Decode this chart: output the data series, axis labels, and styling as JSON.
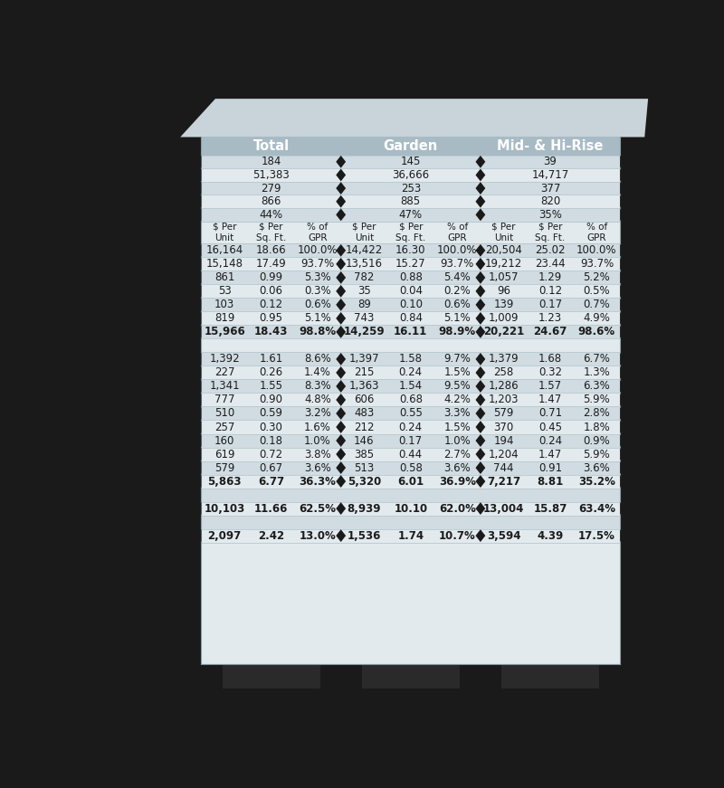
{
  "title_sections": [
    "Total",
    "Garden",
    "Mid- & Hi-Rise"
  ],
  "summary_data": {
    "total": [
      "184",
      "51,383",
      "279",
      "866",
      "44%"
    ],
    "garden": [
      "145",
      "36,666",
      "253",
      "885",
      "47%"
    ],
    "mid": [
      "39",
      "14,717",
      "377",
      "820",
      "35%"
    ]
  },
  "col_headers": [
    "$ Per\nUnit",
    "$ Per\nSq. Ft.",
    "% of\nGPR"
  ],
  "data_rows": [
    [
      "16,164",
      "18.66",
      "100.0%",
      "14,422",
      "16.30",
      "100.0%",
      "20,504",
      "25.02",
      "100.0%"
    ],
    [
      "15,148",
      "17.49",
      "93.7%",
      "13,516",
      "15.27",
      "93.7%",
      "19,212",
      "23.44",
      "93.7%"
    ],
    [
      "861",
      "0.99",
      "5.3%",
      "782",
      "0.88",
      "5.4%",
      "1,057",
      "1.29",
      "5.2%"
    ],
    [
      "53",
      "0.06",
      "0.3%",
      "35",
      "0.04",
      "0.2%",
      "96",
      "0.12",
      "0.5%"
    ],
    [
      "103",
      "0.12",
      "0.6%",
      "89",
      "0.10",
      "0.6%",
      "139",
      "0.17",
      "0.7%"
    ],
    [
      "819",
      "0.95",
      "5.1%",
      "743",
      "0.84",
      "5.1%",
      "1,009",
      "1.23",
      "4.9%"
    ],
    [
      "15,966",
      "18.43",
      "98.8%",
      "14,259",
      "16.11",
      "98.9%",
      "20,221",
      "24.67",
      "98.6%"
    ],
    [
      "",
      "",
      "",
      "",
      "",
      "",
      "",
      "",
      ""
    ],
    [
      "1,392",
      "1.61",
      "8.6%",
      "1,397",
      "1.58",
      "9.7%",
      "1,379",
      "1.68",
      "6.7%"
    ],
    [
      "227",
      "0.26",
      "1.4%",
      "215",
      "0.24",
      "1.5%",
      "258",
      "0.32",
      "1.3%"
    ],
    [
      "1,341",
      "1.55",
      "8.3%",
      "1,363",
      "1.54",
      "9.5%",
      "1,286",
      "1.57",
      "6.3%"
    ],
    [
      "777",
      "0.90",
      "4.8%",
      "606",
      "0.68",
      "4.2%",
      "1,203",
      "1.47",
      "5.9%"
    ],
    [
      "510",
      "0.59",
      "3.2%",
      "483",
      "0.55",
      "3.3%",
      "579",
      "0.71",
      "2.8%"
    ],
    [
      "257",
      "0.30",
      "1.6%",
      "212",
      "0.24",
      "1.5%",
      "370",
      "0.45",
      "1.8%"
    ],
    [
      "160",
      "0.18",
      "1.0%",
      "146",
      "0.17",
      "1.0%",
      "194",
      "0.24",
      "0.9%"
    ],
    [
      "619",
      "0.72",
      "3.8%",
      "385",
      "0.44",
      "2.7%",
      "1,204",
      "1.47",
      "5.9%"
    ],
    [
      "579",
      "0.67",
      "3.6%",
      "513",
      "0.58",
      "3.6%",
      "744",
      "0.91",
      "3.6%"
    ],
    [
      "5,863",
      "6.77",
      "36.3%",
      "5,320",
      "6.01",
      "36.9%",
      "7,217",
      "8.81",
      "35.2%"
    ],
    [
      "",
      "",
      "",
      "",
      "",
      "",
      "",
      "",
      ""
    ],
    [
      "10,103",
      "11.66",
      "62.5%",
      "8,939",
      "10.10",
      "62.0%",
      "13,004",
      "15.87",
      "63.4%"
    ],
    [
      "",
      "",
      "",
      "",
      "",
      "",
      "",
      "",
      ""
    ],
    [
      "2,097",
      "2.42",
      "13.0%",
      "1,536",
      "1.74",
      "10.7%",
      "3,594",
      "4.39",
      "17.5%"
    ]
  ],
  "bold_rows": [
    6,
    17,
    19,
    21
  ],
  "blank_rows": [
    7,
    18,
    20
  ],
  "colors": {
    "bg_dark": "#1a1a1a",
    "header_gray": "#a8bbc5",
    "header_light": "#c8d8de",
    "row_light": "#e2eaee",
    "row_mid": "#d0dce2",
    "row_darker": "#c8d4d8",
    "separator_col": "#d8e4ea",
    "text_dark": "#1c1c1c",
    "text_white": "#ffffff",
    "diamond": "#1a1a1a",
    "notch_fill": "#1a1a1a",
    "line": "#b8c8d0"
  }
}
